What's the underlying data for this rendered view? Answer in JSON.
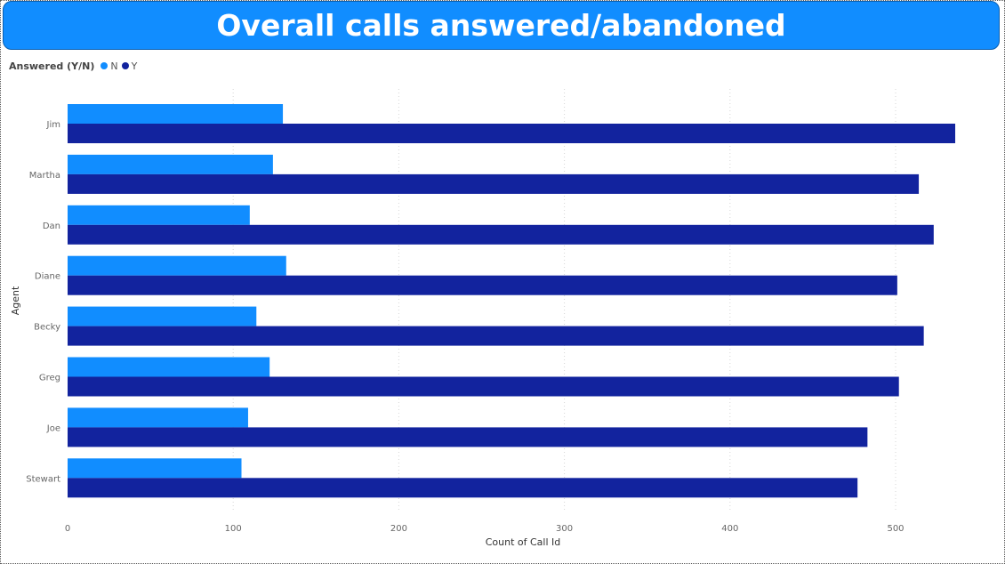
{
  "colors": {
    "N": "#118dff",
    "Y": "#12239e",
    "banner": "#118dff"
  },
  "chart_data": {
    "type": "bar",
    "orientation": "horizontal",
    "title": "Overall calls answered/abandoned",
    "legend_title": "Answered (Y/N)",
    "legend_position": "top-left",
    "categories": [
      "Jim",
      "Martha",
      "Dan",
      "Diane",
      "Becky",
      "Greg",
      "Joe",
      "Stewart"
    ],
    "series": [
      {
        "name": "N",
        "values": [
          130,
          124,
          110,
          132,
          114,
          122,
          109,
          105
        ]
      },
      {
        "name": "Y",
        "values": [
          536,
          514,
          523,
          501,
          517,
          502,
          483,
          477
        ]
      }
    ],
    "xlabel": "Count of Call Id",
    "ylabel": "Agent",
    "xlim": [
      0,
      560
    ],
    "xticks": [
      "0",
      "100",
      "200",
      "300",
      "400",
      "500"
    ],
    "xtick_values": [
      0,
      100,
      200,
      300,
      400,
      500
    ],
    "grid": true
  }
}
